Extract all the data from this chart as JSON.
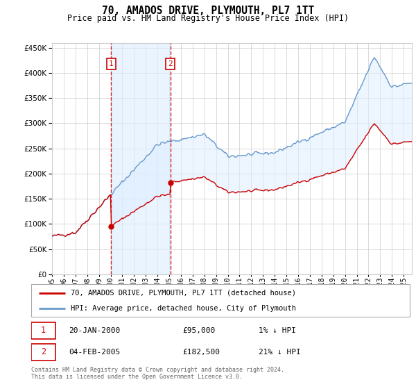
{
  "title": "70, AMADOS DRIVE, PLYMOUTH, PL7 1TT",
  "subtitle": "Price paid vs. HM Land Registry's House Price Index (HPI)",
  "legend_line1": "70, AMADOS DRIVE, PLYMOUTH, PL7 1TT (detached house)",
  "legend_line2": "HPI: Average price, detached house, City of Plymouth",
  "footnote": "Contains HM Land Registry data © Crown copyright and database right 2024.\nThis data is licensed under the Open Government Licence v3.0.",
  "sale1_date_str": "20-JAN-2000",
  "sale1_price_str": "£95,000",
  "sale1_hpi_str": "1% ↓ HPI",
  "sale1_year": 2000.05,
  "sale1_price": 95000,
  "sale2_date_str": "04-FEB-2005",
  "sale2_price_str": "£182,500",
  "sale2_hpi_str": "21% ↓ HPI",
  "sale2_year": 2005.09,
  "sale2_price": 182500,
  "red_line_color": "#cc0000",
  "blue_line_color": "#6699cc",
  "shade_color": "#ddeeff",
  "dashed_color": "#cc0000",
  "marker_box_color": "#cc0000",
  "background_color": "#ffffff",
  "grid_color": "#cccccc",
  "xlim_start": 1995.0,
  "xlim_end": 2025.7
}
